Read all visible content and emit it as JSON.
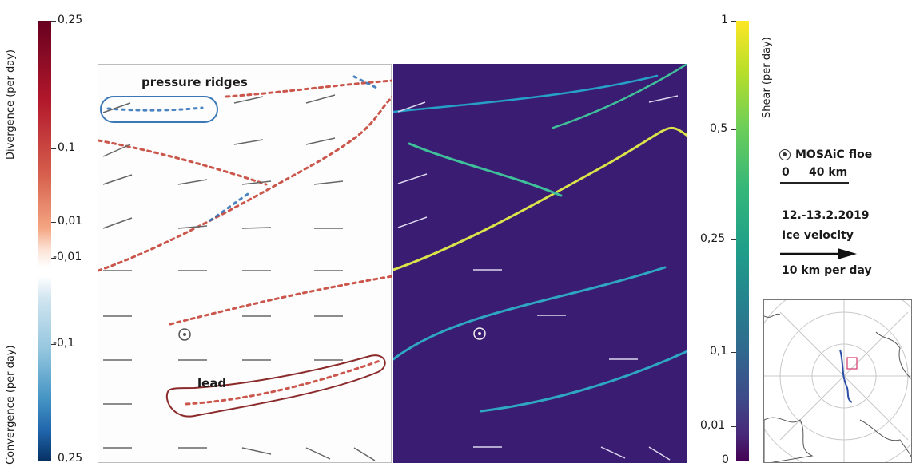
{
  "divergence_scale": {
    "upper_label": "Divergence (per day)",
    "lower_label": "Convergence (per day)",
    "ticks": [
      "0,25",
      "0,1",
      "0,01",
      "-0,01",
      "-0,1",
      "0,25"
    ]
  },
  "shear_scale": {
    "label": "Shear (per day)",
    "ticks": [
      "1",
      "0,5",
      "0,25",
      "0,1",
      "0,01",
      "0"
    ]
  },
  "annotations": {
    "pressure_ridges": "pressure ridges",
    "lead": "lead"
  },
  "legend": {
    "floe_label": "MOSAiC floe",
    "scale_zero": "0",
    "scale_value": "40 km",
    "date": "12.-13.2.2019",
    "velocity_title": "Ice velocity",
    "velocity_value": "10 km per day"
  },
  "colors": {
    "divergence_high": "#67001f",
    "convergence_high": "#053061",
    "shear_high": "#fde725",
    "shear_low": "#440154",
    "panel_bg_right": "#3a1c72",
    "ridge_outline": "#3b78b8",
    "lead_outline": "#8b2a2a"
  }
}
